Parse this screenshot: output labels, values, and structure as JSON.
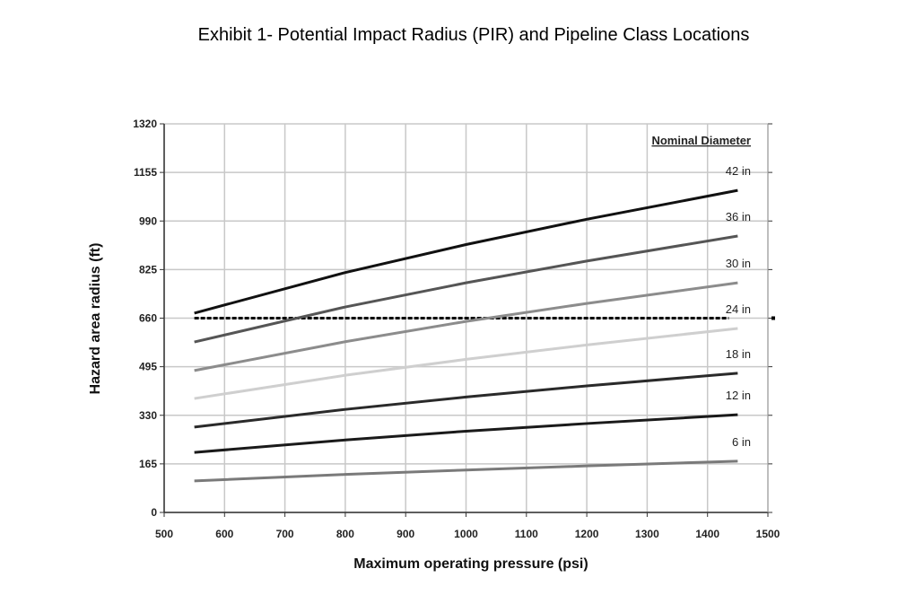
{
  "chart_data": {
    "type": "line",
    "title": "Exhibit 1- Potential Impact Radius (PIR) and Pipeline Class Locations",
    "xlabel": "Maximum operating pressure (psi)",
    "ylabel": "Hazard area radius (ft)",
    "xlim": [
      500,
      1500
    ],
    "ylim": [
      0,
      1320
    ],
    "xticks": [
      500,
      600,
      700,
      800,
      900,
      1000,
      1100,
      1200,
      1300,
      1400,
      1500
    ],
    "yticks": [
      0,
      165,
      330,
      495,
      660,
      825,
      990,
      1155,
      1320
    ],
    "grid": true,
    "legend_title": "Nominal Diameter",
    "legend_placement": "right",
    "x": [
      550,
      800,
      1000,
      1200,
      1450
    ],
    "series": [
      {
        "name": "42 in",
        "color": "#111111",
        "values": [
          677,
          815,
          910,
          996,
          1094
        ]
      },
      {
        "name": "36 in",
        "color": "#555555",
        "values": [
          579,
          698,
          780,
          854,
          939
        ]
      },
      {
        "name": "30 in",
        "color": "#8c8c8c",
        "values": [
          482,
          580,
          649,
          710,
          780
        ]
      },
      {
        "name": "24 in",
        "color": "#cfcfcf",
        "values": [
          387,
          466,
          520,
          569,
          625
        ]
      },
      {
        "name": "18 in",
        "color": "#2a2a2a",
        "values": [
          290,
          350,
          392,
          430,
          473
        ]
      },
      {
        "name": "12 in",
        "color": "#1a1a1a",
        "values": [
          204,
          246,
          276,
          302,
          332
        ]
      },
      {
        "name": "6 in",
        "color": "#7a7a7a",
        "values": [
          107,
          129,
          144,
          158,
          174
        ]
      }
    ],
    "reference_line": {
      "y": 660,
      "x": [
        550,
        1450
      ],
      "style": "dotted",
      "color": "#000000"
    }
  }
}
